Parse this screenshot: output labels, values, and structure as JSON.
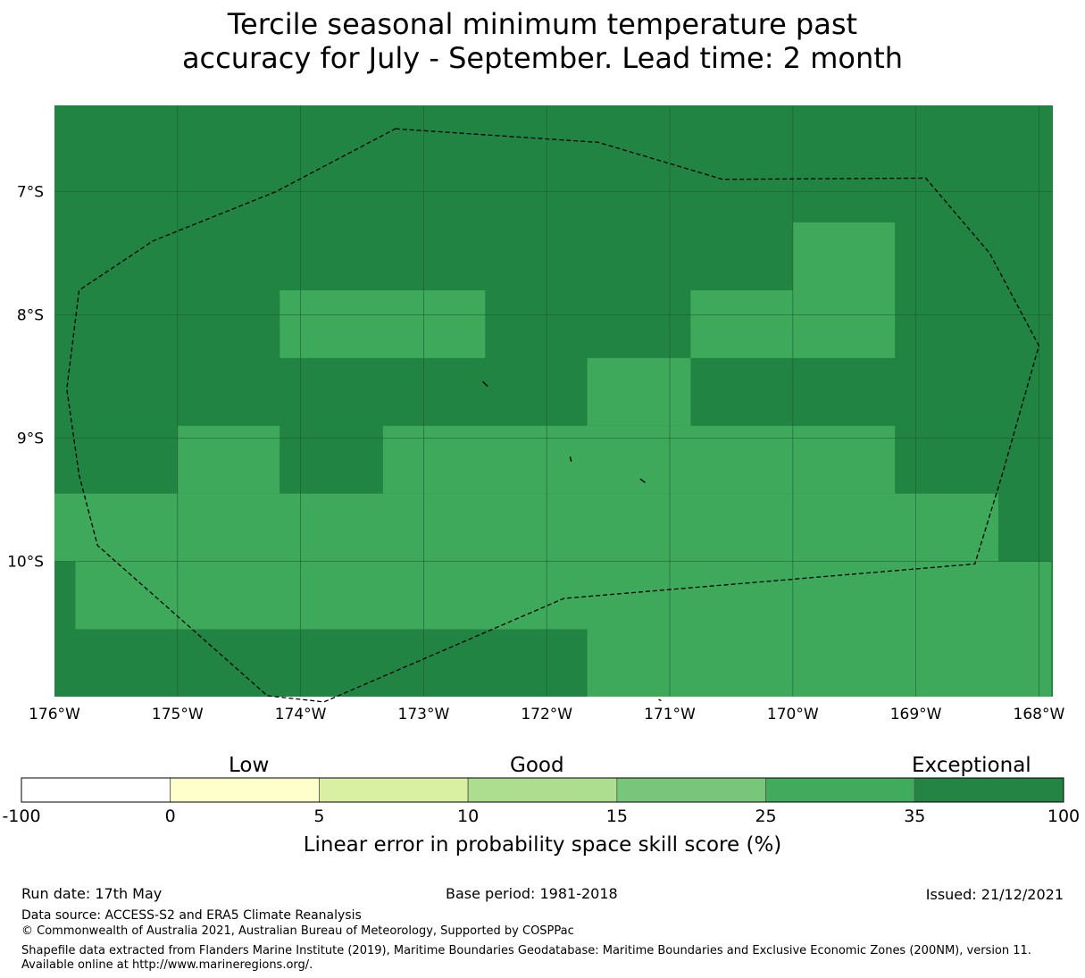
{
  "title": {
    "line1": "Tercile seasonal minimum temperature past",
    "line2": "accuracy for July - September. Lead time: 2 month"
  },
  "map": {
    "lon_range": [
      -176,
      -167.9
    ],
    "lat_range": [
      -11.15,
      -6.3
    ],
    "x_ticks": [
      {
        "value": -176,
        "label": "176°W"
      },
      {
        "value": -175,
        "label": "175°W"
      },
      {
        "value": -174,
        "label": "174°W"
      },
      {
        "value": -173,
        "label": "173°W"
      },
      {
        "value": -172,
        "label": "172°W"
      },
      {
        "value": -171,
        "label": "171°W"
      },
      {
        "value": -170,
        "label": "170°W"
      },
      {
        "value": -169,
        "label": "169°W"
      },
      {
        "value": -168,
        "label": "168°W"
      }
    ],
    "y_ticks": [
      {
        "value": -7,
        "label": "7°S"
      },
      {
        "value": -8,
        "label": "8°S"
      },
      {
        "value": -9,
        "label": "9°S"
      },
      {
        "value": -10,
        "label": "10°S"
      }
    ],
    "colors": {
      "exceptional": "#228443",
      "high": "#3ea95a",
      "grid": "#1a5a2c"
    },
    "background_class": "exceptional",
    "cells": [
      {
        "lon": [
          -174.17,
          -172.5
        ],
        "lat": [
          -8.35,
          -7.8
        ],
        "class": "high"
      },
      {
        "lon": [
          -170.83,
          -169.17
        ],
        "lat": [
          -8.35,
          -7.8
        ],
        "class": "high"
      },
      {
        "lon": [
          -170.0,
          -169.17
        ],
        "lat": [
          -7.8,
          -7.25
        ],
        "class": "high"
      },
      {
        "lon": [
          -171.67,
          -170.83
        ],
        "lat": [
          -8.9,
          -8.35
        ],
        "class": "high"
      },
      {
        "lon": [
          -175.0,
          -174.17
        ],
        "lat": [
          -9.45,
          -8.9
        ],
        "class": "high"
      },
      {
        "lon": [
          -173.33,
          -169.17
        ],
        "lat": [
          -9.45,
          -8.9
        ],
        "class": "high"
      },
      {
        "lon": [
          -176.0,
          -168.33
        ],
        "lat": [
          -10.0,
          -9.45
        ],
        "class": "high"
      },
      {
        "lon": [
          -175.83,
          -167.9
        ],
        "lat": [
          -10.55,
          -10.0
        ],
        "class": "high"
      },
      {
        "lon": [
          -171.67,
          -167.9
        ],
        "lat": [
          -11.15,
          -10.55
        ],
        "class": "high"
      }
    ],
    "eez_boundary": [
      [
        -173.23,
        -6.49
      ],
      [
        -171.58,
        -6.6
      ],
      [
        -170.57,
        -6.9
      ],
      [
        -168.92,
        -6.89
      ],
      [
        -168.4,
        -7.5
      ],
      [
        -168.0,
        -8.25
      ],
      [
        -168.3,
        -9.3
      ],
      [
        -168.52,
        -10.02
      ],
      [
        -171.86,
        -10.3
      ],
      [
        -173.81,
        -11.14
      ],
      [
        -174.27,
        -11.09
      ],
      [
        -175.65,
        -9.87
      ],
      [
        -175.8,
        -9.3
      ],
      [
        -175.9,
        -8.6
      ],
      [
        -175.8,
        -7.8
      ],
      [
        -175.2,
        -7.4
      ],
      [
        -174.2,
        -7.0
      ],
      [
        -173.23,
        -6.49
      ]
    ],
    "islands": [
      [
        [
          -172.52,
          -8.54
        ],
        [
          -172.48,
          -8.58
        ]
      ],
      [
        [
          -171.81,
          -9.15
        ],
        [
          -171.8,
          -9.19
        ]
      ],
      [
        [
          -171.24,
          -9.33
        ],
        [
          -171.2,
          -9.36
        ]
      ],
      [
        [
          -171.09,
          -11.12
        ],
        [
          -171.07,
          -11.13
        ]
      ]
    ]
  },
  "colorbar": {
    "bins": [
      {
        "from": -100,
        "to": 0,
        "color": "#ffffff"
      },
      {
        "from": 0,
        "to": 5,
        "color": "#ffffcc"
      },
      {
        "from": 5,
        "to": 10,
        "color": "#d9f0a3"
      },
      {
        "from": 10,
        "to": 15,
        "color": "#addd8e"
      },
      {
        "from": 15,
        "to": 25,
        "color": "#78c679"
      },
      {
        "from": 25,
        "to": 35,
        "color": "#41ab5d"
      },
      {
        "from": 35,
        "to": 100,
        "color": "#238443"
      }
    ],
    "ticks": [
      "-100",
      "0",
      "5",
      "10",
      "15",
      "25",
      "35",
      "100"
    ],
    "categories": [
      "Low",
      "Good",
      "Exceptional"
    ],
    "label": "Linear error in probability space skill score (%)"
  },
  "footer": {
    "run_date": "Run date: 17th May",
    "base_period": "Base period: 1981-2018",
    "issued": "Issued: 21/12/2021",
    "data_source": "Data source: ACCESS-S2 and ERA5 Climate Reanalysis",
    "copyright": "© Commonwealth of Australia 2021, Australian Bureau of Meteorology, Supported by COSPPac",
    "shapefile": "Shapefile data extracted from Flanders Marine Institute (2019), Maritime Boundaries Geodatabase: Maritime Boundaries and Exclusive Economic Zones (200NM), version 11. Available online at http://www.marineregions.org/."
  }
}
